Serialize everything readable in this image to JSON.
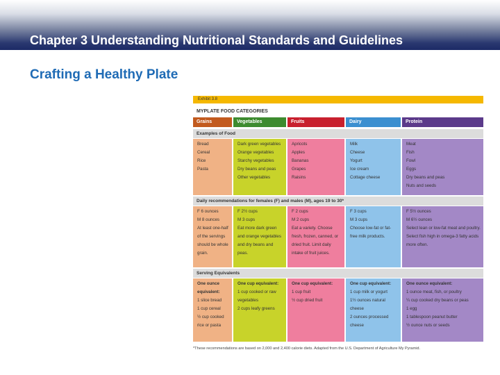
{
  "header": {
    "title": "Chapter 3 Understanding Nutritional Standards and Guidelines"
  },
  "subtitle": "Crafting a Healthy Plate",
  "exhibit": {
    "label": "Exhibit 3.8",
    "title": "MYPLATE FOOD CATEGORIES",
    "categories": [
      {
        "name": "Grains",
        "header_color": "#c25a1e",
        "cell_color": "#f0b285"
      },
      {
        "name": "Vegetables",
        "header_color": "#3d8b2f",
        "cell_color": "#c8d32a"
      },
      {
        "name": "Fruits",
        "header_color": "#c8202e",
        "cell_color": "#ef7e9e"
      },
      {
        "name": "Dairy",
        "header_color": "#3b8fd0",
        "cell_color": "#8fc3ea"
      },
      {
        "name": "Protein",
        "header_color": "#5b3a8a",
        "cell_color": "#a388c6"
      }
    ],
    "section_examples": "Examples of Food",
    "examples": [
      [
        "Bread",
        "Cereal",
        "Rice",
        "Pasta"
      ],
      [
        "Dark green vegetables",
        "Orange vegetables",
        "Starchy vegetables",
        "Dry beans and peas",
        "Other vegetables"
      ],
      [
        "Apricots",
        "Apples",
        "Bananas",
        "Grapes",
        "Raisins"
      ],
      [
        "Milk",
        "Cheese",
        "Yogurt",
        "Ice cream",
        "Cottage cheese"
      ],
      [
        "Meat",
        "Fish",
        "Fowl",
        "Eggs",
        "Dry beans and peas",
        "Nuts and seeds"
      ]
    ],
    "section_daily": "Daily recommendations for females (F) and males (M), ages 19 to 30*",
    "daily": [
      [
        "F  6 ounces",
        "M 8 ounces",
        "At least one-half of the servings should be whole grain."
      ],
      [
        "F  2½ cups",
        "M 3 cups",
        "Eat more dark green and orange vegetables and dry beans and peas."
      ],
      [
        "F  2 cups",
        "M 2 cups",
        "Eat a variety. Choose fresh, frozen, canned, or dried fruit. Limit daily intake of fruit juices."
      ],
      [
        "F  3 cups",
        "M 3 cups",
        "Choose low-fat or fat-free milk products."
      ],
      [
        "F  5½ ounces",
        "M 6½ ounces",
        "Select lean or low-fat meat and poultry. Select fish high in omega-3 fatty acids more often."
      ]
    ],
    "section_serving": "Serving Equivalents",
    "serving": [
      {
        "head": "One ounce equivalent:",
        "items": [
          "1 slice bread",
          "1 cup cereal",
          "½ cup cooked rice or pasta"
        ]
      },
      {
        "head": "One cup equivalent:",
        "items": [
          "1 cup cooked or raw vegetables",
          "2 cups leafy greens"
        ]
      },
      {
        "head": "One cup equivalent:",
        "items": [
          "1 cup fruit",
          "½ cup dried fruit"
        ]
      },
      {
        "head": "One cup equivalent:",
        "items": [
          "1 cup milk or yogurt",
          "1½ ounces natural cheese",
          "2 ounces processed cheese"
        ]
      },
      {
        "head": "One ounce equivalent:",
        "items": [
          "1 ounce meat, fish, or poultry",
          "¼ cup cooked dry beans or peas",
          "1 egg",
          "1 tablespoon peanut butter",
          "½ ounce nuts or seeds"
        ]
      }
    ],
    "footnote": "*These recommendations are based on 2,000 and 2,400 calorie diets. Adapted from the U.S. Department of Agriculture My Pyramid."
  }
}
